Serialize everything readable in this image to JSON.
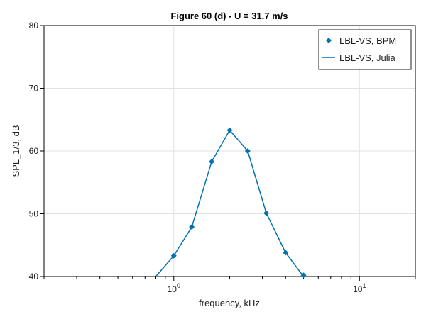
{
  "chart_data": {
    "type": "line",
    "title": "Figure 60 (d) - U = 31.7 m/s",
    "xlabel": "frequency, kHz",
    "ylabel": "SPL_1/3, dB",
    "xscale": "log",
    "xlim": [
      0.2,
      20
    ],
    "ylim": [
      40,
      80
    ],
    "yticks": [
      40,
      50,
      60,
      70,
      80
    ],
    "xticks": [
      {
        "value": 1,
        "base": "10",
        "exp": "0"
      },
      {
        "value": 10,
        "base": "10",
        "exp": "1"
      }
    ],
    "grid": true,
    "legend_position": "top-right",
    "series": [
      {
        "name": "LBL-VS, BPM",
        "style": "markers",
        "marker": "diamond",
        "color": "#0072b2",
        "x": [
          1.0,
          1.25,
          1.6,
          2.0,
          2.5,
          3.15,
          4.0,
          5.0
        ],
        "y": [
          43.3,
          47.9,
          58.3,
          63.3,
          60.0,
          50.1,
          43.8,
          40.2
        ]
      },
      {
        "name": "LBL-VS, Julia",
        "style": "line",
        "color": "#0072b2",
        "x": [
          0.8,
          1.0,
          1.25,
          1.6,
          2.0,
          2.5,
          3.15,
          4.0,
          5.0
        ],
        "y": [
          40.0,
          43.3,
          47.9,
          58.3,
          63.3,
          60.0,
          50.1,
          43.8,
          40.0
        ]
      }
    ]
  }
}
